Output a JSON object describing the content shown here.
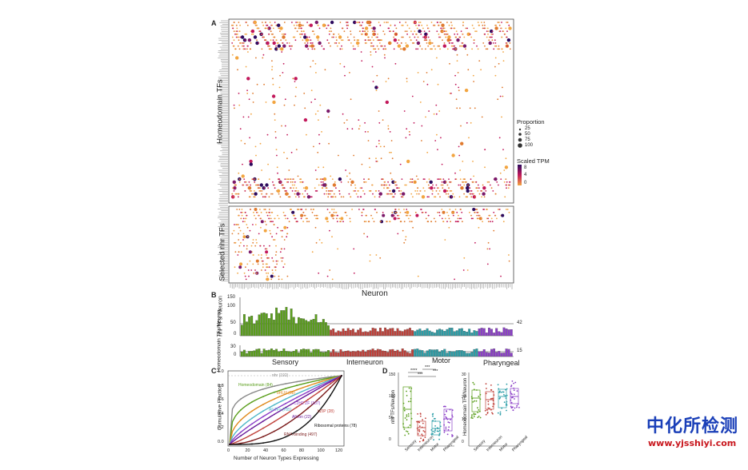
{
  "figure": {
    "panels": {
      "A": {
        "letter": "A",
        "ylabel_top": "Homeodomain TFs",
        "ylabel_bottom": "Selected nhr TFs",
        "xlabel": "Neuron",
        "legend": {
          "proportion_title": "Proportion",
          "proportion_values": [
            "25",
            "50",
            "75",
            "100"
          ],
          "scaled_title": "Scaled TPM",
          "scaled_values": [
            "8",
            "4",
            "0"
          ]
        },
        "colors": {
          "low": "#f2a541",
          "mid": "#c2185b",
          "high": "#2c0a5e"
        }
      },
      "B": {
        "letter": "B",
        "ylabel_top": "nhr TFs/ Neuron",
        "ylabel_bottom": "Homeodomain TFs/Neuron",
        "yticks_top": [
          "150",
          "100",
          "50",
          "0"
        ],
        "yticks_bottom": [
          "30",
          "0"
        ],
        "ref_top": "42",
        "ref_bottom": "15",
        "groups": [
          "Sensory",
          "Interneuron",
          "Motor",
          "Pharyngeal"
        ],
        "group_colors": [
          "#5a9e1c",
          "#c0413a",
          "#2c9ea8",
          "#8b3fc7"
        ],
        "counts": {
          "Sensory": 36,
          "Interneuron": 34,
          "Motor": 26,
          "Pharyngeal": 14
        }
      },
      "C": {
        "letter": "C",
        "ylabel": "Cumulative Fraction",
        "xlabel": "Number of Neuron Types Expressing",
        "xticks": [
          "0",
          "20",
          "40",
          "60",
          "80",
          "100",
          "120"
        ],
        "yticks": [
          "1.0",
          "0.8",
          "0.6",
          "0.4",
          "0.2",
          "0.0"
        ],
        "series": [
          {
            "name": "nhr (192)",
            "color": "#8a8a8a"
          },
          {
            "name": "Homeodomain (84)",
            "color": "#5a9e1c"
          },
          {
            "name": "bHLH (38)",
            "color": "#e08a1e"
          },
          {
            "name": "All TFs (785)",
            "color": "#4fb7c8"
          },
          {
            "name": "C2H2 ZF (107)",
            "color": "#8b3fc7"
          },
          {
            "name": "All Ion (22)",
            "color": "#6a1b9a"
          },
          {
            "name": "bZIP (28)",
            "color": "#c0413a"
          },
          {
            "name": "RNA-binding (497)",
            "color": "#7a1a1a"
          },
          {
            "name": "Ribosomal proteins (78)",
            "color": "#111111"
          }
        ]
      },
      "D": {
        "letter": "D",
        "ylabel_left": "nhr TFs/Neuron",
        "ylabel_right": "Homeodomain TFs/Neuron",
        "yticks_left": [
          "150",
          "100",
          "50",
          "0"
        ],
        "yticks_right": [
          "30",
          "20",
          "10",
          "0"
        ],
        "categories": [
          "Sensory",
          "Interneuron",
          "Motor",
          "Pharyngeal"
        ],
        "significance": [
          "****",
          "***",
          "***",
          "***"
        ]
      }
    }
  },
  "watermark": {
    "cn": "中化所检测",
    "url": "www.yjsshiyi.com"
  }
}
